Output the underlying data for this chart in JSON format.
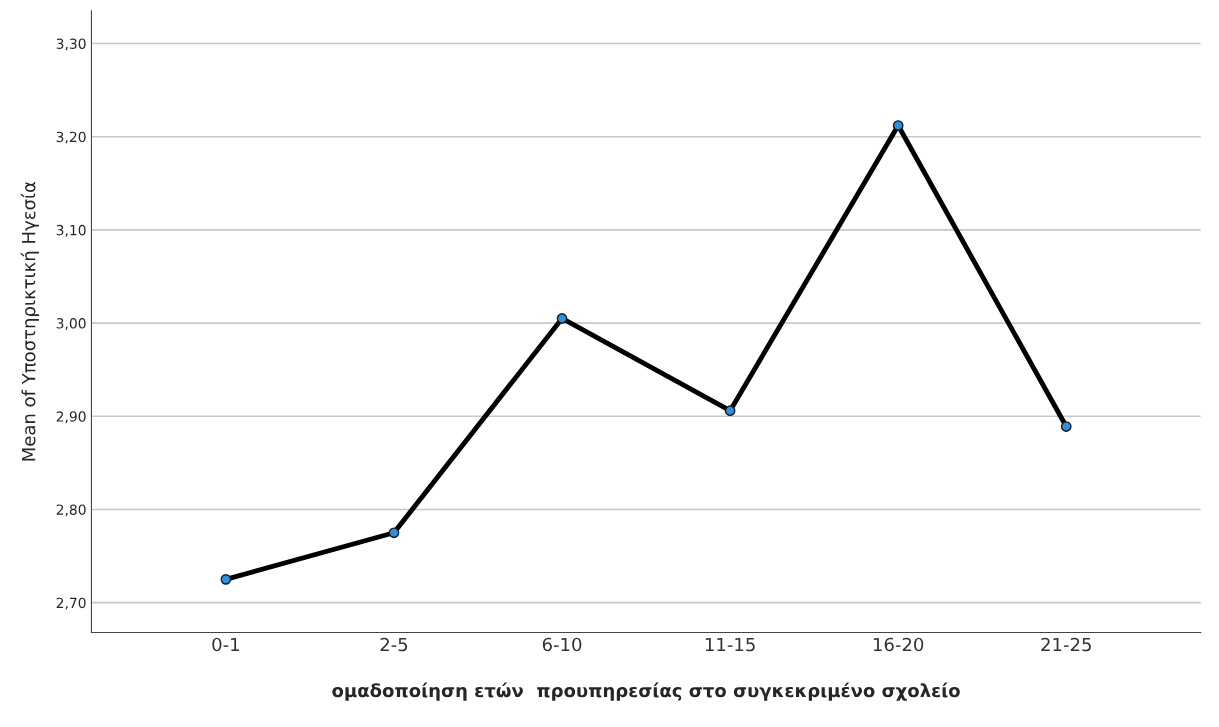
{
  "chart_data": {
    "type": "line",
    "xlabel": "ομαδοποίηση ετών  προυπηρεσίας στο συγκεκριμένο σχολείο",
    "ylabel": "Mean of Υποστηρικτική Ηγεσία",
    "categories": [
      "0-1",
      "2-5",
      "6-10",
      "11-15",
      "16-20",
      "21-25"
    ],
    "series": [
      {
        "color": "#000000",
        "values": [
          2.725,
          2.775,
          3.005,
          2.906,
          3.212,
          2.889
        ]
      }
    ],
    "ylim": [
      2.668,
      3.335
    ],
    "yticks": [
      {
        "value": 2.7,
        "label": "2,70"
      },
      {
        "value": 2.8,
        "label": "2,80"
      },
      {
        "value": 2.9,
        "label": "2,90"
      },
      {
        "value": 3.0,
        "label": "3,00"
      },
      {
        "value": 3.1,
        "label": "3,10"
      },
      {
        "value": 3.2,
        "label": "3,20"
      },
      {
        "value": 3.3,
        "label": "3,30"
      }
    ],
    "grid": "y",
    "marker": "circle",
    "line_style": "solid",
    "legend": false
  }
}
